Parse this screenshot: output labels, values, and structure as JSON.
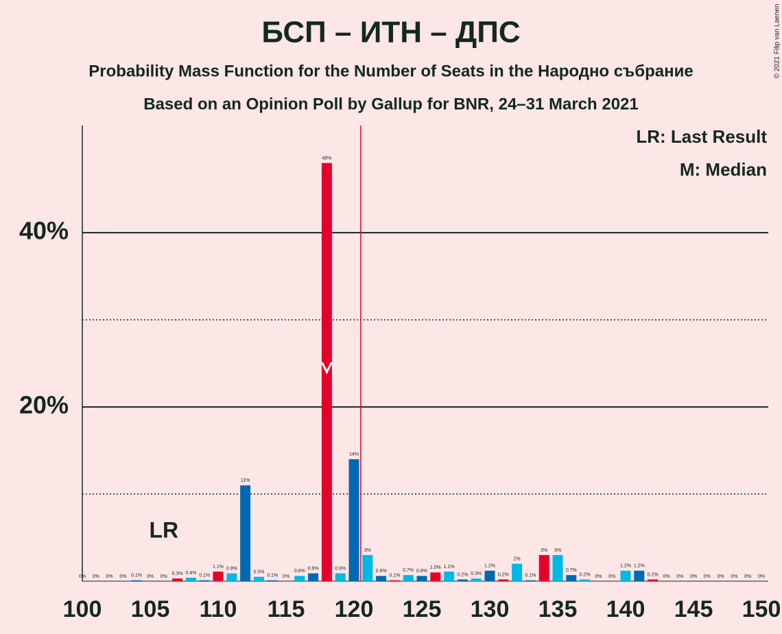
{
  "chart_data": {
    "type": "bar",
    "title": "БСП – ИТН – ДПС",
    "subtitle": "Probability Mass Function for the Number of Seats in the Народно събрание",
    "subtitle2": "Based on an Opinion Poll by Gallup for BNR, 24–31 March 2021",
    "copyright": "© 2021 Filip van Laenen",
    "legend": [
      "LR: Last Result",
      "M: Median"
    ],
    "last_result_label": "LR",
    "last_result": 106,
    "median": 118,
    "majority_line": 120.5,
    "x": [
      100,
      101,
      102,
      103,
      104,
      105,
      106,
      107,
      108,
      109,
      110,
      111,
      112,
      113,
      114,
      115,
      116,
      117,
      118,
      119,
      120,
      121,
      122,
      123,
      124,
      125,
      126,
      127,
      128,
      129,
      130,
      131,
      132,
      133,
      134,
      135,
      136,
      137,
      138,
      139,
      140,
      141,
      142,
      143,
      144,
      145,
      146,
      147,
      148,
      149,
      150
    ],
    "values": [
      0,
      0,
      0,
      0,
      0.1,
      0,
      0,
      0.3,
      0.4,
      0.1,
      1.1,
      0.9,
      11,
      0.5,
      0.1,
      0,
      0.6,
      0.9,
      48,
      0.9,
      14,
      3,
      0.6,
      0.1,
      0.7,
      0.6,
      1.0,
      1.1,
      0.2,
      0.3,
      1.2,
      0.2,
      2,
      0.1,
      3,
      3,
      0.7,
      0.2,
      0,
      0,
      1.2,
      1.2,
      0.2,
      0,
      0,
      0,
      0,
      0,
      0,
      0,
      0
    ],
    "value_labels": [
      "0%",
      "0%",
      "0%",
      "0%",
      "0.1%",
      "0%",
      "0%",
      "0.3%",
      "0.4%",
      "0.1%",
      "1.1%",
      "0.9%",
      "11%",
      "0.5%",
      "0.1%",
      "0%",
      "0.6%",
      "0.9%",
      "48%",
      "0.9%",
      "14%",
      "3%",
      "0.6%",
      "0.1%",
      "0.7%",
      "0.6%",
      "1.0%",
      "1.1%",
      "0.2%",
      "0.3%",
      "1.2%",
      "0.2%",
      "2%",
      "0.1%",
      "3%",
      "3%",
      "0.7%",
      "0.2%",
      "0%",
      "0%",
      "1.2%",
      "1.2%",
      "0.2%",
      "0%",
      "0%",
      "0%",
      "0%",
      "0%",
      "0%",
      "0%",
      "0%"
    ],
    "colors": [
      "#0069b4",
      "#00b9e4",
      "#0069b4",
      "#e4002b",
      "#00b9e4",
      "#0069b4",
      "#e4002b",
      "#00b9e4"
    ],
    "color_cycle_start": 104,
    "xlim": [
      100,
      150
    ],
    "xticks": [
      100,
      105,
      110,
      115,
      120,
      125,
      130,
      135,
      140,
      145,
      150
    ],
    "ylim": [
      0,
      52.3
    ],
    "yticks": [
      {
        "value": 20,
        "label": "20%"
      },
      {
        "value": 40,
        "label": "40%"
      }
    ],
    "minor_yticks": [
      10,
      30
    ],
    "median_line_color": "#e4002b"
  }
}
